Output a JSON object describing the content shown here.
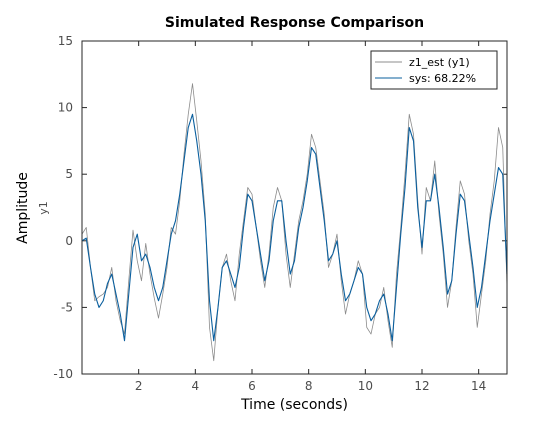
{
  "colors": {
    "measured": "#8c8c8c",
    "simulated": "#0a5f9e",
    "axes": "#262626",
    "tick_text": "#4d4d4d",
    "background": "#ffffff"
  },
  "chart_data": {
    "type": "line",
    "title": "Simulated Response Comparison",
    "xlabel": "Time (seconds)",
    "ylabel": "Amplitude",
    "channel_label": "y1",
    "xlim": [
      0,
      15
    ],
    "ylim": [
      -10,
      15
    ],
    "xticks": [
      2,
      4,
      6,
      8,
      10,
      12,
      14
    ],
    "yticks": [
      -10,
      -5,
      0,
      5,
      10,
      15
    ],
    "grid": false,
    "legend_position": "top-right",
    "series": [
      {
        "name": "z1_est (y1)",
        "color": "#8c8c8c",
        "x": [
          0.0,
          0.15,
          0.3,
          0.45,
          0.6,
          0.75,
          0.9,
          1.05,
          1.2,
          1.35,
          1.5,
          1.65,
          1.8,
          1.95,
          2.1,
          2.25,
          2.4,
          2.55,
          2.7,
          2.85,
          3.0,
          3.15,
          3.3,
          3.45,
          3.6,
          3.75,
          3.9,
          4.05,
          4.2,
          4.35,
          4.5,
          4.65,
          4.8,
          4.95,
          5.1,
          5.25,
          5.4,
          5.55,
          5.7,
          5.85,
          6.0,
          6.15,
          6.3,
          6.45,
          6.6,
          6.75,
          6.9,
          7.05,
          7.2,
          7.35,
          7.5,
          7.65,
          7.8,
          7.95,
          8.1,
          8.25,
          8.4,
          8.55,
          8.7,
          8.85,
          9.0,
          9.15,
          9.3,
          9.45,
          9.6,
          9.75,
          9.9,
          10.05,
          10.2,
          10.35,
          10.5,
          10.65,
          10.8,
          10.95,
          11.1,
          11.25,
          11.4,
          11.55,
          11.7,
          11.85,
          12.0,
          12.15,
          12.3,
          12.45,
          12.6,
          12.75,
          12.9,
          13.05,
          13.2,
          13.35,
          13.5,
          13.65,
          13.8,
          13.95,
          14.1,
          14.25,
          14.4,
          14.55,
          14.7,
          14.85,
          15.0
        ],
        "values": [
          0.5,
          1.0,
          -2.0,
          -4.5,
          -4.2,
          -4.0,
          -3.5,
          -2.0,
          -4.5,
          -6.0,
          -7.0,
          -3.0,
          0.8,
          -1.5,
          -3.0,
          -0.2,
          -2.5,
          -4.3,
          -5.8,
          -4.0,
          -2.0,
          1.0,
          0.5,
          3.0,
          6.5,
          9.5,
          11.8,
          9.0,
          6.0,
          2.0,
          -6.5,
          -9.0,
          -5.0,
          -2.0,
          -1.0,
          -3.0,
          -4.5,
          -1.0,
          1.5,
          4.0,
          3.5,
          1.0,
          -1.5,
          -3.5,
          -1.0,
          2.5,
          4.0,
          3.0,
          -1.0,
          -3.5,
          -1.0,
          1.5,
          3.0,
          5.0,
          8.0,
          7.0,
          4.5,
          2.0,
          -2.0,
          -1.0,
          0.5,
          -3.0,
          -5.5,
          -4.0,
          -3.0,
          -1.5,
          -2.5,
          -6.5,
          -7.0,
          -5.5,
          -5.0,
          -3.5,
          -6.0,
          -8.0,
          -2.5,
          1.0,
          5.0,
          9.5,
          8.0,
          3.0,
          -1.0,
          4.0,
          3.0,
          6.0,
          2.0,
          -1.0,
          -5.0,
          -3.0,
          1.0,
          4.5,
          3.5,
          0.0,
          -2.5,
          -6.5,
          -4.0,
          -1.5,
          2.0,
          4.5,
          8.5,
          7.0,
          -3.5
        ]
      },
      {
        "name": "sys: 68.22%",
        "color": "#0a5f9e",
        "x": [
          0.0,
          0.15,
          0.3,
          0.45,
          0.6,
          0.75,
          0.9,
          1.05,
          1.2,
          1.35,
          1.5,
          1.65,
          1.8,
          1.95,
          2.1,
          2.25,
          2.4,
          2.55,
          2.7,
          2.85,
          3.0,
          3.15,
          3.3,
          3.45,
          3.6,
          3.75,
          3.9,
          4.05,
          4.2,
          4.35,
          4.5,
          4.65,
          4.8,
          4.95,
          5.1,
          5.25,
          5.4,
          5.55,
          5.7,
          5.85,
          6.0,
          6.15,
          6.3,
          6.45,
          6.6,
          6.75,
          6.9,
          7.05,
          7.2,
          7.35,
          7.5,
          7.65,
          7.8,
          7.95,
          8.1,
          8.25,
          8.4,
          8.55,
          8.7,
          8.85,
          9.0,
          9.15,
          9.3,
          9.45,
          9.6,
          9.75,
          9.9,
          10.05,
          10.2,
          10.35,
          10.5,
          10.65,
          10.8,
          10.95,
          11.1,
          11.25,
          11.4,
          11.55,
          11.7,
          11.85,
          12.0,
          12.15,
          12.3,
          12.45,
          12.6,
          12.75,
          12.9,
          13.05,
          13.2,
          13.35,
          13.5,
          13.65,
          13.8,
          13.95,
          14.1,
          14.25,
          14.4,
          14.55,
          14.7,
          14.85,
          15.0
        ],
        "values": [
          0.0,
          0.2,
          -2.0,
          -4.0,
          -5.0,
          -4.5,
          -3.2,
          -2.5,
          -4.0,
          -5.5,
          -7.5,
          -4.0,
          -0.5,
          0.5,
          -1.5,
          -1.0,
          -2.0,
          -3.5,
          -4.5,
          -3.5,
          -1.5,
          0.5,
          1.5,
          3.5,
          6.0,
          8.5,
          9.5,
          7.5,
          5.0,
          1.5,
          -4.5,
          -7.5,
          -5.0,
          -2.0,
          -1.5,
          -2.5,
          -3.5,
          -2.0,
          1.0,
          3.5,
          3.0,
          1.0,
          -1.0,
          -3.0,
          -1.5,
          1.5,
          3.0,
          3.0,
          0.0,
          -2.5,
          -1.5,
          1.0,
          2.5,
          4.5,
          7.0,
          6.5,
          4.0,
          1.5,
          -1.5,
          -1.0,
          0.0,
          -2.5,
          -4.5,
          -4.0,
          -3.0,
          -2.0,
          -2.5,
          -5.0,
          -6.0,
          -5.5,
          -4.5,
          -4.0,
          -5.5,
          -7.5,
          -3.5,
          0.5,
          4.0,
          8.5,
          7.5,
          2.5,
          -0.5,
          3.0,
          3.0,
          5.0,
          2.5,
          -0.5,
          -4.0,
          -3.0,
          0.5,
          3.5,
          3.0,
          0.5,
          -2.0,
          -5.0,
          -3.5,
          -1.0,
          1.5,
          3.5,
          5.5,
          5.0,
          -2.5
        ]
      }
    ]
  }
}
